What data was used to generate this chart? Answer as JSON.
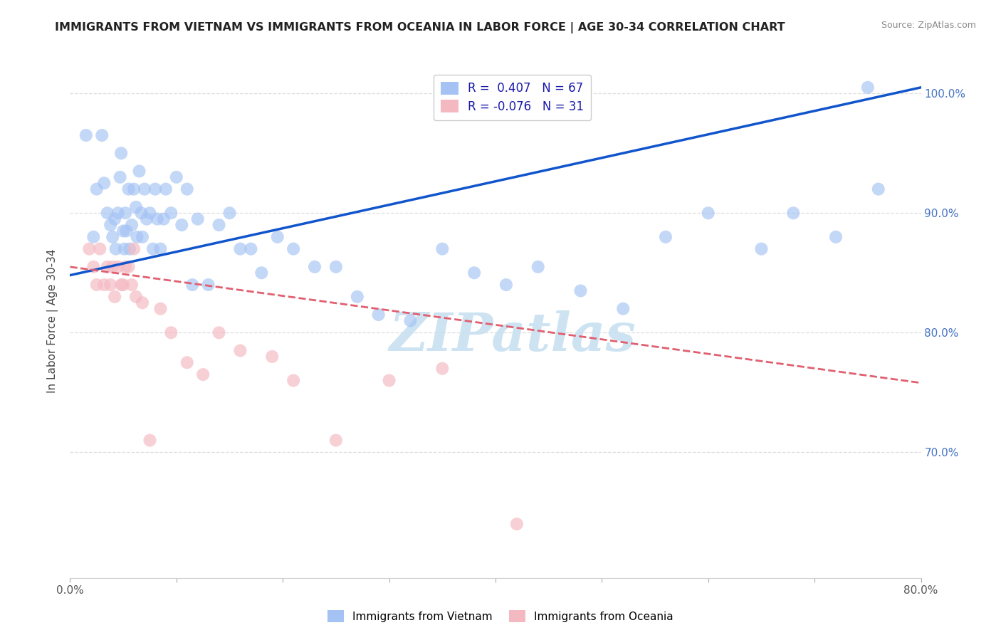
{
  "title": "IMMIGRANTS FROM VIETNAM VS IMMIGRANTS FROM OCEANIA IN LABOR FORCE | AGE 30-34 CORRELATION CHART",
  "source": "Source: ZipAtlas.com",
  "ylabel_left": "In Labor Force | Age 30-34",
  "x_min": 0.0,
  "x_max": 0.8,
  "y_min": 0.595,
  "y_max": 1.025,
  "right_yticks": [
    0.7,
    0.8,
    0.9,
    1.0
  ],
  "right_yticklabels": [
    "70.0%",
    "80.0%",
    "90.0%",
    "100.0%"
  ],
  "bottom_xticks": [
    0.0,
    0.1,
    0.2,
    0.3,
    0.4,
    0.5,
    0.6,
    0.7,
    0.8
  ],
  "bottom_xticklabels": [
    "0.0%",
    "",
    "",
    "",
    "",
    "",
    "",
    "",
    "80.0%"
  ],
  "color_vietnam": "#a4c2f4",
  "color_oceania": "#f4b8c1",
  "color_vietnam_line": "#1155cc",
  "color_oceania_line": "#e06070",
  "R_vietnam": 0.407,
  "N_vietnam": 67,
  "R_oceania": -0.076,
  "N_oceania": 31,
  "watermark": "ZIPatlas",
  "watermark_color": "#c5dff0",
  "legend_label_vietnam": "Immigrants from Vietnam",
  "legend_label_oceania": "Immigrants from Oceania",
  "vietnam_line_x0": 0.0,
  "vietnam_line_y0": 0.848,
  "vietnam_line_x1": 0.8,
  "vietnam_line_y1": 1.005,
  "oceania_line_x0": 0.0,
  "oceania_line_y0": 0.855,
  "oceania_line_x1": 0.8,
  "oceania_line_y1": 0.758,
  "vietnam_x": [
    0.015,
    0.022,
    0.025,
    0.03,
    0.032,
    0.035,
    0.038,
    0.04,
    0.042,
    0.043,
    0.045,
    0.047,
    0.048,
    0.05,
    0.051,
    0.052,
    0.053,
    0.055,
    0.056,
    0.058,
    0.06,
    0.062,
    0.063,
    0.065,
    0.067,
    0.068,
    0.07,
    0.072,
    0.075,
    0.078,
    0.08,
    0.082,
    0.085,
    0.088,
    0.09,
    0.095,
    0.1,
    0.105,
    0.11,
    0.115,
    0.12,
    0.13,
    0.14,
    0.15,
    0.16,
    0.17,
    0.18,
    0.195,
    0.21,
    0.23,
    0.25,
    0.27,
    0.29,
    0.32,
    0.35,
    0.38,
    0.41,
    0.44,
    0.48,
    0.52,
    0.56,
    0.6,
    0.65,
    0.68,
    0.72,
    0.76,
    0.75
  ],
  "vietnam_y": [
    0.965,
    0.88,
    0.92,
    0.965,
    0.925,
    0.9,
    0.89,
    0.88,
    0.895,
    0.87,
    0.9,
    0.93,
    0.95,
    0.885,
    0.87,
    0.9,
    0.885,
    0.92,
    0.87,
    0.89,
    0.92,
    0.905,
    0.88,
    0.935,
    0.9,
    0.88,
    0.92,
    0.895,
    0.9,
    0.87,
    0.92,
    0.895,
    0.87,
    0.895,
    0.92,
    0.9,
    0.93,
    0.89,
    0.92,
    0.84,
    0.895,
    0.84,
    0.89,
    0.9,
    0.87,
    0.87,
    0.85,
    0.88,
    0.87,
    0.855,
    0.855,
    0.83,
    0.815,
    0.81,
    0.87,
    0.85,
    0.84,
    0.855,
    0.835,
    0.82,
    0.88,
    0.9,
    0.87,
    0.9,
    0.88,
    0.92,
    1.005
  ],
  "oceania_x": [
    0.018,
    0.022,
    0.025,
    0.028,
    0.032,
    0.035,
    0.038,
    0.04,
    0.042,
    0.045,
    0.048,
    0.05,
    0.052,
    0.055,
    0.058,
    0.06,
    0.062,
    0.068,
    0.075,
    0.085,
    0.095,
    0.11,
    0.125,
    0.14,
    0.16,
    0.19,
    0.21,
    0.25,
    0.3,
    0.35,
    0.42
  ],
  "oceania_y": [
    0.87,
    0.855,
    0.84,
    0.87,
    0.84,
    0.855,
    0.84,
    0.855,
    0.83,
    0.855,
    0.84,
    0.84,
    0.855,
    0.855,
    0.84,
    0.87,
    0.83,
    0.825,
    0.71,
    0.82,
    0.8,
    0.775,
    0.765,
    0.8,
    0.785,
    0.78,
    0.76,
    0.71,
    0.76,
    0.77,
    0.64
  ]
}
